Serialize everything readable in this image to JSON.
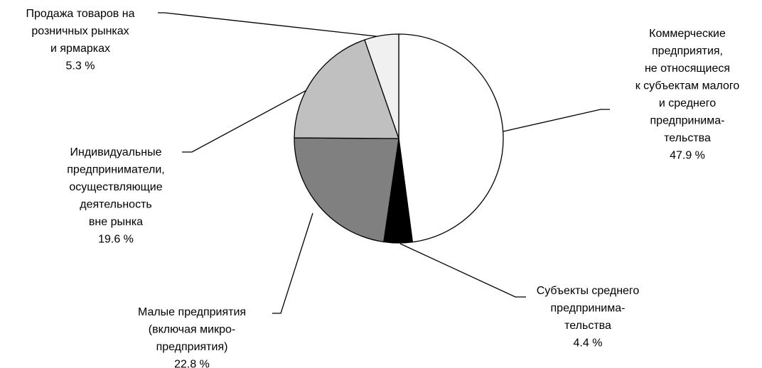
{
  "chart_data": {
    "type": "pie",
    "categories": [
      [
        "Коммерческие",
        "предприятия,",
        "не относящиеся",
        "к субъектам малого",
        "и среднего",
        "предпринима-",
        "тельства"
      ],
      [
        "Субъекты среднего",
        "предпринима-",
        "тельства"
      ],
      [
        "Малые предприятия",
        "(включая микро-",
        "предприятия)"
      ],
      [
        "Индивидуальные",
        "предприниматели,",
        "осуществляющие",
        "деятельность",
        "вне рынка"
      ],
      [
        "Продажа товаров на",
        "розничных рынках",
        "и ярмарках"
      ]
    ],
    "values": [
      47.9,
      4.4,
      22.8,
      19.6,
      5.3
    ],
    "value_labels": [
      "47.9 %",
      "4.4 %",
      "22.8 %",
      "19.6 %",
      "5.3 %"
    ],
    "colors": [
      "#ffffff",
      "#000000",
      "#808080",
      "#c0c0c0",
      "#f0f0f0"
    ],
    "start_angle": 90,
    "direction": "clockwise"
  }
}
